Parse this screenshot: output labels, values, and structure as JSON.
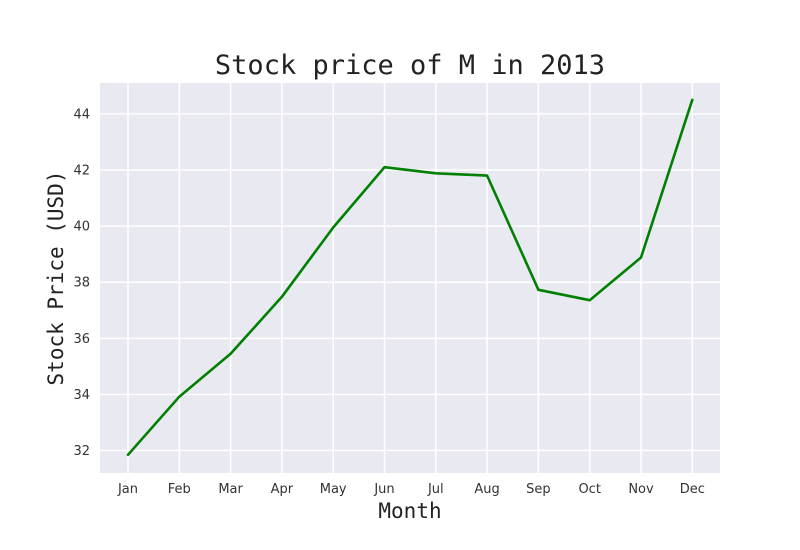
{
  "chart_data": {
    "type": "line",
    "title": "Stock price of M in 2013",
    "xlabel": "Month",
    "ylabel": "Stock Price (USD)",
    "categories": [
      "Jan",
      "Feb",
      "Mar",
      "Apr",
      "May",
      "Jun",
      "Jul",
      "Aug",
      "Sep",
      "Oct",
      "Nov",
      "Dec"
    ],
    "series": [
      {
        "values": [
          31.85,
          33.92,
          35.45,
          37.48,
          39.95,
          42.1,
          41.88,
          41.8,
          37.73,
          37.36,
          38.88,
          44.5
        ],
        "color": "#008000"
      }
    ],
    "yticks": [
      32,
      34,
      36,
      38,
      40,
      42,
      44
    ],
    "ylim": [
      31.2,
      45.1
    ],
    "grid": true,
    "legend": "none"
  }
}
